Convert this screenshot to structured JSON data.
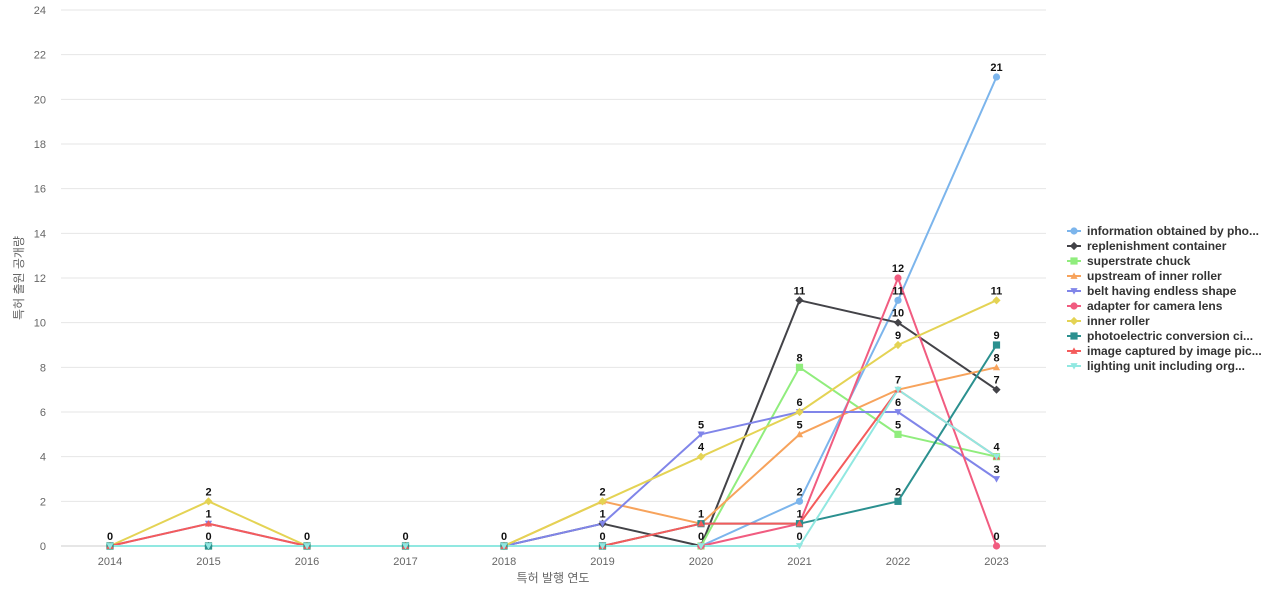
{
  "chart_data": {
    "type": "line",
    "title": "",
    "xlabel": "특허 발행 연도",
    "ylabel": "특허 출원 공개량",
    "ylim": [
      0,
      24
    ],
    "yticks": [
      0,
      2,
      4,
      6,
      8,
      10,
      12,
      14,
      16,
      18,
      20,
      22,
      24
    ],
    "grid": true,
    "legend_position": "right",
    "x": [
      "2014",
      "2015",
      "2016",
      "2017",
      "2018",
      "2019",
      "2020",
      "2021",
      "2022",
      "2023"
    ],
    "series": [
      {
        "name": "information obtained by pho...",
        "color": "#7cb5ec",
        "marker": "circle",
        "values": [
          0,
          0,
          0,
          0,
          0,
          0,
          0,
          2,
          11,
          21
        ]
      },
      {
        "name": "replenishment container",
        "color": "#434348",
        "marker": "diamond",
        "values": [
          0,
          0,
          0,
          0,
          0,
          1,
          0,
          11,
          10,
          7
        ]
      },
      {
        "name": "superstrate chuck",
        "color": "#90ed7d",
        "marker": "square",
        "values": [
          0,
          0,
          0,
          0,
          0,
          0,
          0,
          8,
          5,
          4
        ]
      },
      {
        "name": "upstream of inner roller",
        "color": "#f7a35c",
        "marker": "triangle",
        "values": [
          0,
          0,
          0,
          0,
          0,
          2,
          1,
          5,
          7,
          8
        ]
      },
      {
        "name": "belt having endless shape",
        "color": "#8085e9",
        "marker": "triangle-down",
        "values": [
          0,
          1,
          0,
          0,
          0,
          1,
          5,
          6,
          6,
          3
        ]
      },
      {
        "name": "adapter for camera lens",
        "color": "#f15c80",
        "marker": "circle",
        "values": [
          0,
          0,
          0,
          0,
          0,
          0,
          0,
          1,
          12,
          0
        ]
      },
      {
        "name": "inner roller",
        "color": "#e4d354",
        "marker": "diamond",
        "values": [
          0,
          2,
          0,
          0,
          0,
          2,
          4,
          6,
          9,
          11
        ]
      },
      {
        "name": "photoelectric conversion ci...",
        "color": "#2b908f",
        "marker": "square",
        "values": [
          0,
          0,
          0,
          0,
          0,
          0,
          1,
          1,
          2,
          9
        ]
      },
      {
        "name": "image captured by image pic...",
        "color": "#f45b5b",
        "marker": "triangle",
        "values": [
          0,
          1,
          0,
          0,
          0,
          0,
          1,
          1,
          7,
          4
        ]
      },
      {
        "name": "lighting unit including org...",
        "color": "#91e8e1",
        "marker": "triangle-down",
        "values": [
          0,
          0,
          0,
          0,
          0,
          0,
          0,
          0,
          7,
          4
        ]
      }
    ],
    "data_labels": [
      {
        "x": "2014",
        "y": 0,
        "text": "0"
      },
      {
        "x": "2015",
        "y": 2,
        "text": "2"
      },
      {
        "x": "2015",
        "y": 1,
        "text": "1"
      },
      {
        "x": "2015",
        "y": 0,
        "text": "0"
      },
      {
        "x": "2016",
        "y": 0,
        "text": "0"
      },
      {
        "x": "2017",
        "y": 0,
        "text": "0"
      },
      {
        "x": "2018",
        "y": 0,
        "text": "0"
      },
      {
        "x": "2019",
        "y": 2,
        "text": "2"
      },
      {
        "x": "2019",
        "y": 1,
        "text": "1"
      },
      {
        "x": "2019",
        "y": 0,
        "text": "0"
      },
      {
        "x": "2020",
        "y": 5,
        "text": "5"
      },
      {
        "x": "2020",
        "y": 4,
        "text": "4"
      },
      {
        "x": "2020",
        "y": 1,
        "text": "1"
      },
      {
        "x": "2020",
        "y": 0,
        "text": "0"
      },
      {
        "x": "2021",
        "y": 11,
        "text": "11"
      },
      {
        "x": "2021",
        "y": 8,
        "text": "8"
      },
      {
        "x": "2021",
        "y": 6,
        "text": "6"
      },
      {
        "x": "2021",
        "y": 5,
        "text": "5"
      },
      {
        "x": "2021",
        "y": 2,
        "text": "2"
      },
      {
        "x": "2021",
        "y": 1,
        "text": "1"
      },
      {
        "x": "2021",
        "y": 0,
        "text": "0"
      },
      {
        "x": "2022",
        "y": 12,
        "text": "12"
      },
      {
        "x": "2022",
        "y": 11,
        "text": "11"
      },
      {
        "x": "2022",
        "y": 10,
        "text": "10"
      },
      {
        "x": "2022",
        "y": 9,
        "text": "9"
      },
      {
        "x": "2022",
        "y": 7,
        "text": "7"
      },
      {
        "x": "2022",
        "y": 6,
        "text": "6"
      },
      {
        "x": "2022",
        "y": 5,
        "text": "5"
      },
      {
        "x": "2022",
        "y": 2,
        "text": "2"
      },
      {
        "x": "2023",
        "y": 21,
        "text": "21"
      },
      {
        "x": "2023",
        "y": 11,
        "text": "11"
      },
      {
        "x": "2023",
        "y": 9,
        "text": "9"
      },
      {
        "x": "2023",
        "y": 8,
        "text": "8"
      },
      {
        "x": "2023",
        "y": 7,
        "text": "7"
      },
      {
        "x": "2023",
        "y": 4,
        "text": "4"
      },
      {
        "x": "2023",
        "y": 3,
        "text": "3"
      },
      {
        "x": "2023",
        "y": 0,
        "text": "0"
      }
    ]
  }
}
